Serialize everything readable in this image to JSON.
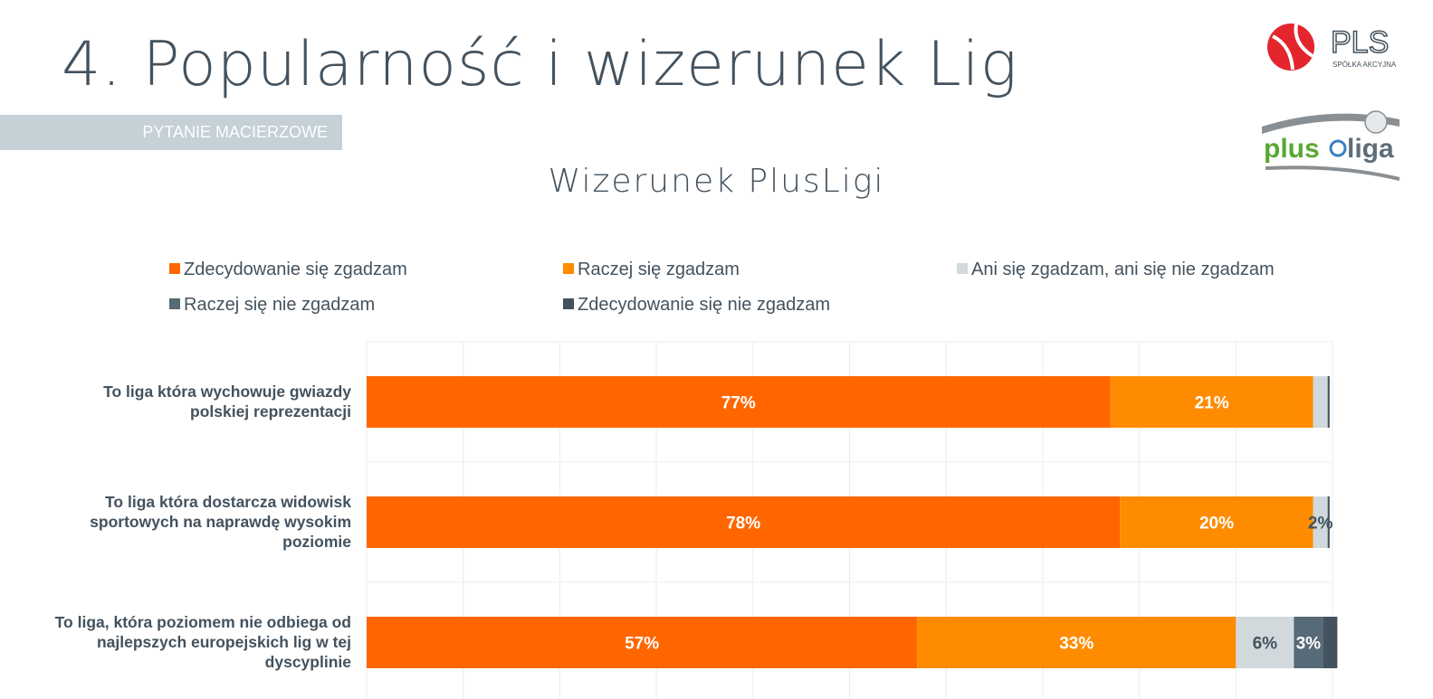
{
  "header": {
    "title": "4. Popularność i wizerunek Lig",
    "tag": "PYTANIE MACIERZOWE"
  },
  "logos": {
    "pls": {
      "text": "PLS",
      "subtext": "SPÓŁKA AKCYJNA"
    },
    "plusliga": {
      "left": "plus",
      "right": "liga"
    }
  },
  "colors": {
    "strongly_agree": "#ff6600",
    "agree": "#ff8c00",
    "neutral": "#d1d9dd",
    "disagree": "#566a77",
    "strongly_disagree": "#43525e"
  },
  "chart_data": {
    "type": "bar",
    "orientation": "horizontal",
    "stacked": true,
    "title": "Wizerunek PlusLigi",
    "xlim": [
      0,
      100
    ],
    "grid": true,
    "legend_position": "top",
    "categories": [
      "To liga która wychowuje gwiazdy polskiej reprezentacji",
      "To liga która dostarcza widowisk sportowych na naprawdę wysokim poziomie",
      "To liga, która poziomem nie odbiega od najlepszych europejskich lig w tej dyscyplinie"
    ],
    "series": [
      {
        "name": "Zdecydowanie się zgadzam",
        "values": [
          77,
          78,
          57
        ],
        "labels": [
          "77%",
          "78%",
          "57%"
        ]
      },
      {
        "name": "Raczej się zgadzam",
        "values": [
          21,
          20,
          33
        ],
        "labels": [
          "21%",
          "20%",
          "33%"
        ]
      },
      {
        "name": "Ani się zgadzam, ani się nie zgadzam",
        "values": [
          1.5,
          1.5,
          6
        ],
        "labels": [
          "",
          "2%",
          "6%"
        ]
      },
      {
        "name": "Raczej się nie zgadzam",
        "values": [
          0,
          0,
          3
        ],
        "labels": [
          "",
          "",
          "3%"
        ]
      },
      {
        "name": "Zdecydowanie się nie zgadzam",
        "values": [
          0.2,
          0.2,
          1.5
        ],
        "labels": [
          "",
          "",
          ""
        ]
      }
    ]
  }
}
